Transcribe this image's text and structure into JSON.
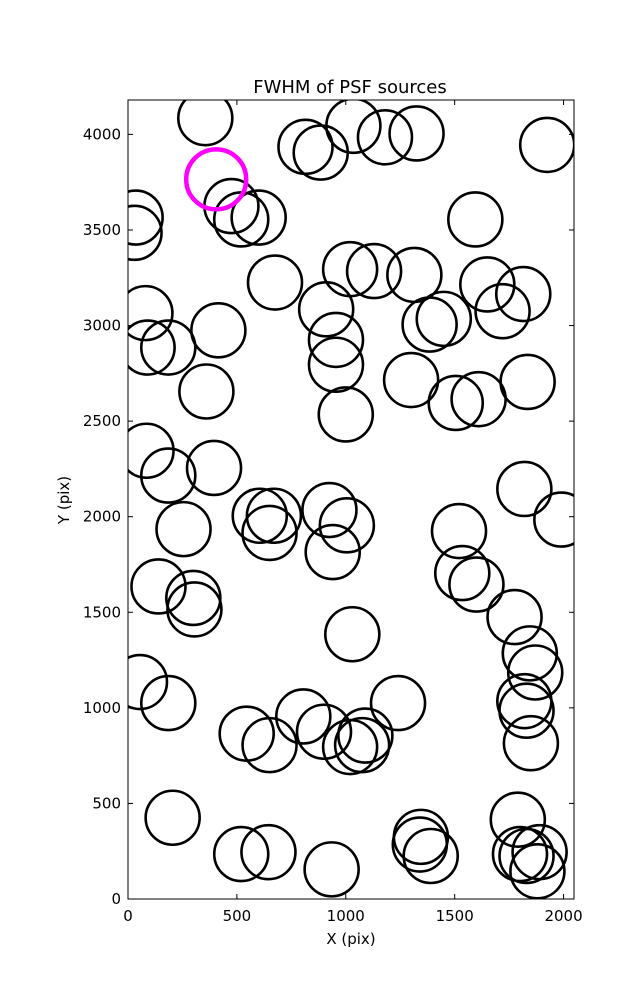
{
  "chart_data": {
    "type": "scatter",
    "title": "FWHM of PSF sources",
    "xlabel": "X (pix)",
    "ylabel": "Y (pix)",
    "xlim": [
      0,
      2048
    ],
    "ylim": [
      0,
      4180
    ],
    "xticks": [
      0,
      500,
      1000,
      1500,
      2000
    ],
    "yticks": [
      0,
      500,
      1000,
      1500,
      2000,
      2500,
      3000,
      3500,
      4000
    ],
    "grid": false,
    "marker": "open circle",
    "marker_color": "#000000",
    "highlight_color": "#ff00ff",
    "highlight": {
      "x": 405,
      "y": 3765
    },
    "points": [
      {
        "x": 355,
        "y": 4085
      },
      {
        "x": 815,
        "y": 3935
      },
      {
        "x": 885,
        "y": 3905
      },
      {
        "x": 1035,
        "y": 4045
      },
      {
        "x": 1180,
        "y": 3985
      },
      {
        "x": 1325,
        "y": 4005
      },
      {
        "x": 1925,
        "y": 3945
      },
      {
        "x": 475,
        "y": 3625
      },
      {
        "x": 520,
        "y": 3555
      },
      {
        "x": 600,
        "y": 3565
      },
      {
        "x": 35,
        "y": 3565
      },
      {
        "x": 30,
        "y": 3485
      },
      {
        "x": 1595,
        "y": 3555
      },
      {
        "x": 675,
        "y": 3225
      },
      {
        "x": 1020,
        "y": 3295
      },
      {
        "x": 1130,
        "y": 3285
      },
      {
        "x": 1315,
        "y": 3265
      },
      {
        "x": 1650,
        "y": 3215
      },
      {
        "x": 1815,
        "y": 3165
      },
      {
        "x": 1720,
        "y": 3075
      },
      {
        "x": 910,
        "y": 3085
      },
      {
        "x": 80,
        "y": 3065
      },
      {
        "x": 90,
        "y": 2885
      },
      {
        "x": 185,
        "y": 2885
      },
      {
        "x": 415,
        "y": 2975
      },
      {
        "x": 955,
        "y": 2925
      },
      {
        "x": 955,
        "y": 2795
      },
      {
        "x": 1385,
        "y": 3005
      },
      {
        "x": 1450,
        "y": 3035
      },
      {
        "x": 1300,
        "y": 2715
      },
      {
        "x": 1835,
        "y": 2705
      },
      {
        "x": 360,
        "y": 2655
      },
      {
        "x": 1505,
        "y": 2595
      },
      {
        "x": 1610,
        "y": 2615
      },
      {
        "x": 1000,
        "y": 2535
      },
      {
        "x": 85,
        "y": 2345
      },
      {
        "x": 185,
        "y": 2215
      },
      {
        "x": 395,
        "y": 2255
      },
      {
        "x": 1820,
        "y": 2145
      },
      {
        "x": 605,
        "y": 2005
      },
      {
        "x": 670,
        "y": 2005
      },
      {
        "x": 650,
        "y": 1915
      },
      {
        "x": 925,
        "y": 2035
      },
      {
        "x": 1005,
        "y": 1955
      },
      {
        "x": 940,
        "y": 1815
      },
      {
        "x": 1520,
        "y": 1925
      },
      {
        "x": 1990,
        "y": 1985
      },
      {
        "x": 255,
        "y": 1935
      },
      {
        "x": 140,
        "y": 1635
      },
      {
        "x": 300,
        "y": 1575
      },
      {
        "x": 305,
        "y": 1515
      },
      {
        "x": 1535,
        "y": 1705
      },
      {
        "x": 1600,
        "y": 1645
      },
      {
        "x": 1775,
        "y": 1475
      },
      {
        "x": 1030,
        "y": 1385
      },
      {
        "x": 1845,
        "y": 1285
      },
      {
        "x": 1870,
        "y": 1185
      },
      {
        "x": 55,
        "y": 1135
      },
      {
        "x": 185,
        "y": 1025
      },
      {
        "x": 1240,
        "y": 1025
      },
      {
        "x": 1820,
        "y": 1035
      },
      {
        "x": 1830,
        "y": 985
      },
      {
        "x": 1850,
        "y": 815
      },
      {
        "x": 545,
        "y": 865
      },
      {
        "x": 650,
        "y": 805
      },
      {
        "x": 805,
        "y": 955
      },
      {
        "x": 900,
        "y": 875
      },
      {
        "x": 1020,
        "y": 795
      },
      {
        "x": 1090,
        "y": 855
      },
      {
        "x": 1075,
        "y": 805
      },
      {
        "x": 1790,
        "y": 415
      },
      {
        "x": 205,
        "y": 425
      },
      {
        "x": 520,
        "y": 235
      },
      {
        "x": 645,
        "y": 245
      },
      {
        "x": 935,
        "y": 155
      },
      {
        "x": 1345,
        "y": 325
      },
      {
        "x": 1340,
        "y": 285
      },
      {
        "x": 1390,
        "y": 225
      },
      {
        "x": 1800,
        "y": 235
      },
      {
        "x": 1830,
        "y": 225
      },
      {
        "x": 1890,
        "y": 245
      },
      {
        "x": 1880,
        "y": 145
      }
    ]
  }
}
